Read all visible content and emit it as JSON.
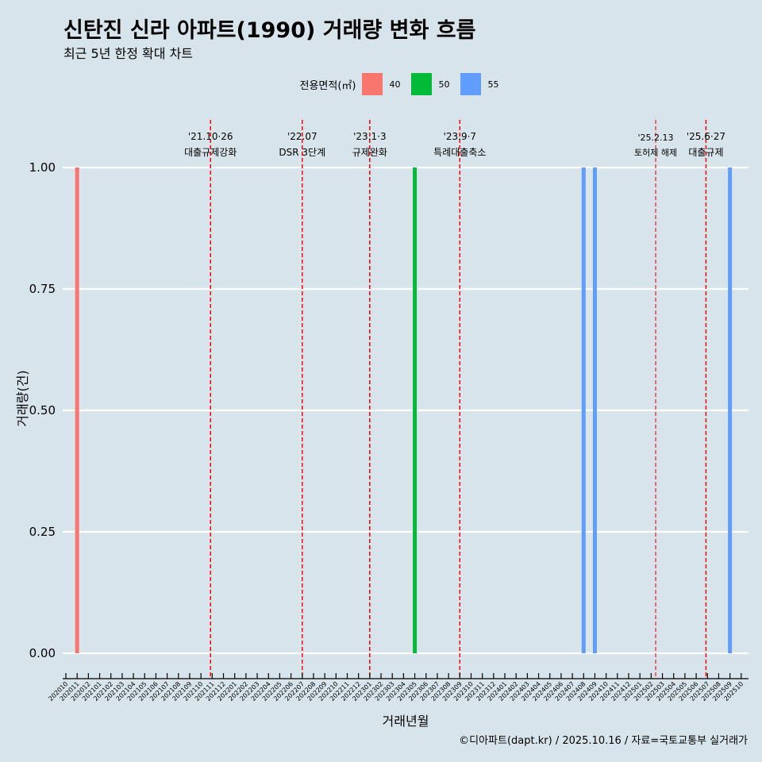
{
  "title": "신탄진 신라 아파트(1990) 거래량 변화 흐름",
  "subtitle": "최근 5년 한정 확대 차트",
  "caption": "©디아파트(dapt.kr) / 2025.10.16 / 자료=국토교통부 실거래가",
  "legend": {
    "title": "전용면적(㎡)",
    "items": [
      {
        "label": "40",
        "color": "#f8766d"
      },
      {
        "label": "50",
        "color": "#00ba38"
      },
      {
        "label": "55",
        "color": "#619cff"
      }
    ]
  },
  "chart_data": {
    "type": "bar",
    "xlabel": "거래년월",
    "ylabel": "거래량(건)",
    "ylim": [
      0,
      1
    ],
    "yticks": [
      "0.00",
      "0.25",
      "0.50",
      "0.75",
      "1.00"
    ],
    "categories": [
      "202010",
      "202011",
      "202012",
      "202101",
      "202102",
      "202103",
      "202104",
      "202105",
      "202106",
      "202107",
      "202108",
      "202109",
      "202110",
      "202111",
      "202112",
      "202201",
      "202202",
      "202203",
      "202204",
      "202205",
      "202206",
      "202207",
      "202208",
      "202209",
      "202210",
      "202211",
      "202212",
      "202301",
      "202302",
      "202303",
      "202304",
      "202305",
      "202306",
      "202307",
      "202308",
      "202309",
      "202310",
      "202311",
      "202312",
      "202401",
      "202402",
      "202403",
      "202404",
      "202405",
      "202406",
      "202407",
      "202408",
      "202409",
      "202410",
      "202411",
      "202412",
      "202501",
      "202502",
      "202503",
      "202504",
      "202505",
      "202506",
      "202507",
      "202508",
      "202509",
      "202510"
    ],
    "bars": [
      {
        "month": "202011",
        "series": "40",
        "value": 1
      },
      {
        "month": "202305",
        "series": "50",
        "value": 1
      },
      {
        "month": "202408",
        "series": "55",
        "value": 1
      },
      {
        "month": "202409",
        "series": "55",
        "value": 1
      },
      {
        "month": "202509",
        "series": "55",
        "value": 1
      }
    ],
    "annotations": [
      {
        "month": "202110",
        "offset": 0.85,
        "line1": "'21.10·26",
        "line2": "대출규제강화",
        "small": false
      },
      {
        "month": "202207",
        "offset": 0.0,
        "line1": "'22.07",
        "line2": "DSR 3단계",
        "small": false
      },
      {
        "month": "202301",
        "offset": 0.0,
        "line1": "'23.1·3",
        "line2": "규제완화",
        "small": false
      },
      {
        "month": "202309",
        "offset": 0.0,
        "line1": "'23.9·7",
        "line2": "특례대출축소",
        "small": false
      },
      {
        "month": "202502",
        "offset": 0.4,
        "line1": "'25.2.13",
        "line2": "토허제 해제",
        "small": true
      },
      {
        "month": "202506",
        "offset": 0.87,
        "line1": "'25.6·27",
        "line2": "대출규제",
        "small": false
      }
    ]
  }
}
